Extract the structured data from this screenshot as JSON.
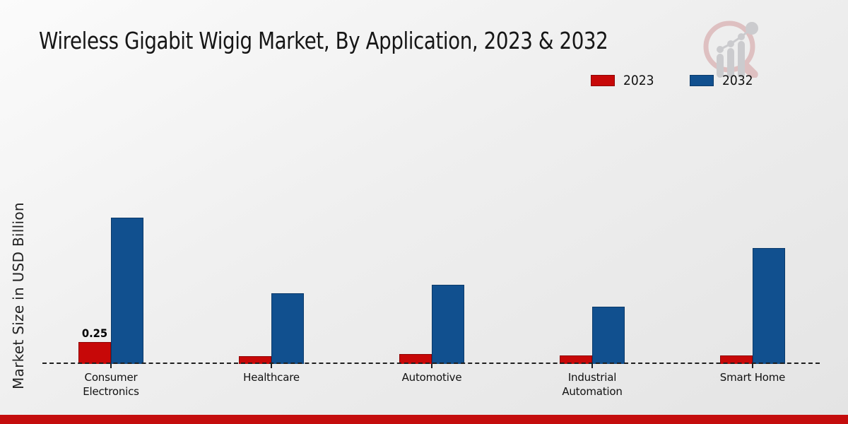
{
  "title": "Wireless Gigabit Wigig Market, By Application, 2023 & 2032",
  "ylabel": "Market Size in USD Billion",
  "legend": {
    "position": "top-right",
    "items": [
      {
        "label": "2023",
        "color": "#c70808",
        "border": "#8f0404"
      },
      {
        "label": "2032",
        "color": "#11508f",
        "border": "#0b3a6a"
      }
    ]
  },
  "watermark": {
    "icon": "magnifier-growth-chart-logo",
    "ring_color": "#dcb9ba",
    "bar_color": "#c6c6c9"
  },
  "footer_band_color": "#c40d0d",
  "axis": {
    "zero_line_color": "#1f1f1f",
    "zero_line_style": "dashed"
  },
  "chart_data": {
    "type": "bar",
    "categories": [
      "Consumer Electronics",
      "Healthcare",
      "Automotive",
      "Industrial Automation",
      "Smart Home"
    ],
    "series": [
      {
        "name": "2023",
        "color": "#c70808",
        "border": "#8f0404",
        "values": [
          0.25,
          0.09,
          0.11,
          0.1,
          0.1
        ]
      },
      {
        "name": "2032",
        "color": "#11508f",
        "border": "#0b3a6a",
        "values": [
          1.67,
          0.81,
          0.9,
          0.65,
          1.32
        ]
      }
    ],
    "bar_labels": [
      {
        "series_index": 0,
        "category_index": 0,
        "text": "0.25"
      }
    ],
    "title": "Wireless Gigabit Wigig Market, By Application, 2023 & 2032",
    "xlabel": "",
    "ylabel": "Market Size in USD Billion",
    "ylim": [
      0,
      1.9
    ],
    "grid": false,
    "y_ticks_visible": false,
    "legend_position": "top-right"
  }
}
